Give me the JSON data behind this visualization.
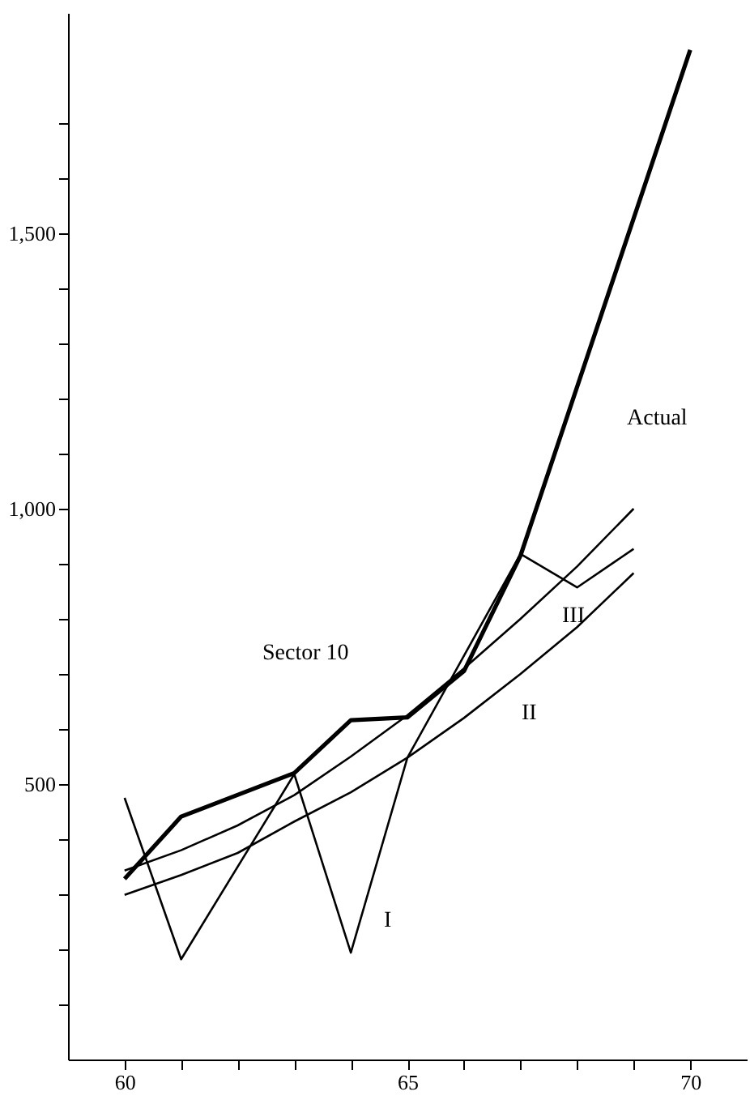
{
  "chart_data": {
    "type": "line",
    "annotations": [
      "Sector 10",
      "Actual",
      "I",
      "II",
      "III"
    ],
    "series": [
      {
        "color": "#000000",
        "x": [
          60,
          61,
          63,
          64,
          65,
          66,
          67,
          70
        ],
        "values": [
          328,
          441,
          520,
          616,
          621,
          705,
          915,
          1833
        ]
      },
      {
        "color": "#000000",
        "x": [
          60,
          61,
          63,
          64,
          65,
          67,
          68,
          69
        ],
        "values": [
          475,
          182,
          518,
          194,
          548,
          918,
          857,
          927
        ]
      },
      {
        "color": "#000000",
        "x": [
          60,
          61,
          62,
          63,
          64,
          65,
          66,
          67,
          68,
          69
        ],
        "values": [
          299,
          335,
          375,
          432,
          485,
          548,
          620,
          700,
          785,
          883
        ]
      },
      {
        "color": "#000000",
        "x": [
          60,
          61,
          62,
          63,
          64,
          65,
          66,
          67,
          68,
          69
        ],
        "values": [
          343,
          380,
          425,
          480,
          550,
          625,
          710,
          800,
          895,
          1000
        ]
      }
    ],
    "xlim": [
      59,
      71
    ],
    "xticks": [
      60,
      {
        "value": 61,
        "label": null
      },
      {
        "value": 62,
        "label": null
      },
      {
        "value": 63,
        "label": null
      },
      {
        "value": 64,
        "label": null
      },
      65,
      {
        "value": 66,
        "label": null
      },
      {
        "value": 67,
        "label": null
      },
      {
        "value": 68,
        "label": null
      },
      {
        "value": 69,
        "label": null
      },
      70
    ],
    "ylim": [
      0,
      1900
    ],
    "yticks": [
      {
        "value": 100,
        "label": null
      },
      {
        "value": 200,
        "label": null
      },
      {
        "value": 300,
        "label": null
      },
      {
        "value": 400,
        "label": null
      },
      500,
      {
        "value": 600,
        "label": null
      },
      {
        "value": 700,
        "label": null
      },
      {
        "value": 800,
        "label": null
      },
      {
        "value": 900,
        "label": null
      },
      {
        "value": 1000,
        "label": "1,000"
      },
      {
        "value": 1100,
        "label": null
      },
      {
        "value": 1200,
        "label": null
      },
      {
        "value": 1300,
        "label": null
      },
      {
        "value": 1400,
        "label": null
      },
      {
        "value": 1500,
        "label": "1,500"
      },
      {
        "value": 1600,
        "label": null
      },
      {
        "value": 1700,
        "label": null
      }
    ],
    "grid": false,
    "marker": "none",
    "line_style": "solid"
  }
}
